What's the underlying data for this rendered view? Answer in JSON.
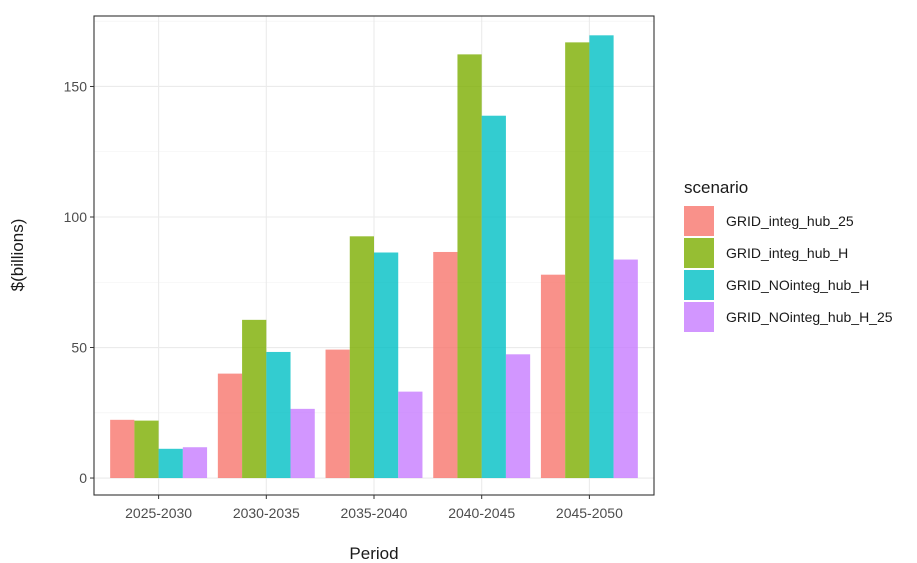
{
  "chart_data": {
    "type": "bar",
    "title": "",
    "xlabel": "Period",
    "ylabel": "$(billions)",
    "categories": [
      "2025-2030",
      "2030-2035",
      "2035-2040",
      "2040-2045",
      "2045-2050"
    ],
    "ylim": [
      -6.5,
      177
    ],
    "yticks": [
      0,
      50,
      100,
      150
    ],
    "grid": true,
    "legend_position": "right",
    "legend_title": "scenario",
    "series": [
      {
        "name": "GRID_integ_hub_25",
        "color": "#F8766D",
        "values": [
          22.3,
          40.0,
          49.2,
          86.6,
          77.9
        ]
      },
      {
        "name": "GRID_integ_hub_H",
        "color": "#7CAE00",
        "values": [
          22.0,
          60.6,
          92.6,
          162.3,
          166.9
        ]
      },
      {
        "name": "GRID_NOinteg_hub_H",
        "color": "#00BFC4",
        "values": [
          11.2,
          48.3,
          86.4,
          138.8,
          169.6
        ]
      },
      {
        "name": "GRID_NOinteg_hub_H_25",
        "color": "#C77CFF",
        "values": [
          11.8,
          26.5,
          33.1,
          47.4,
          83.7
        ]
      }
    ]
  }
}
